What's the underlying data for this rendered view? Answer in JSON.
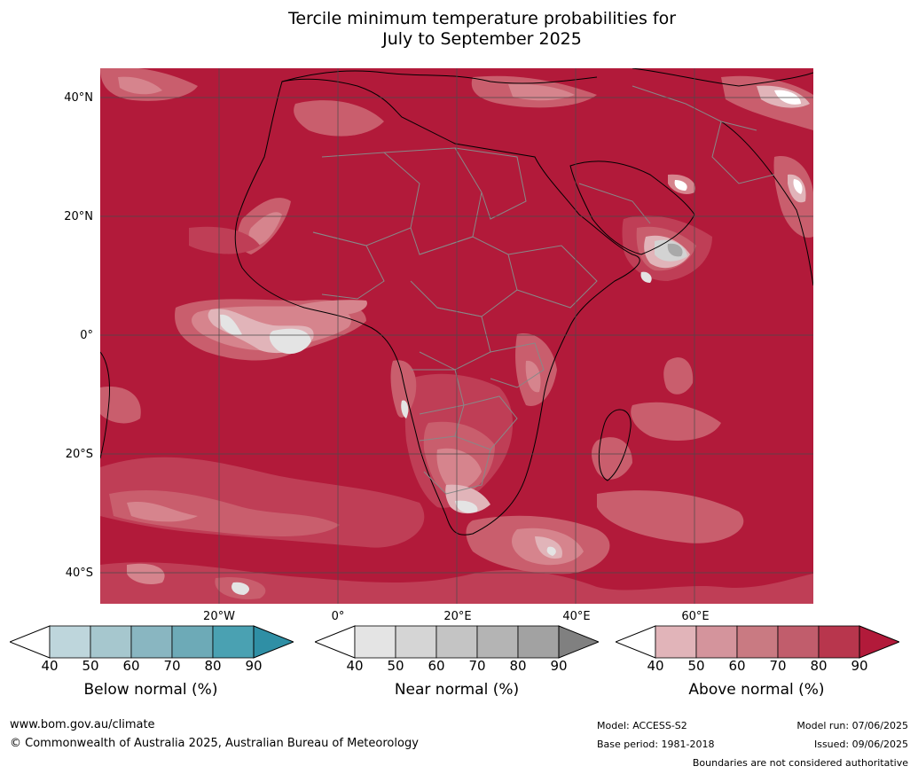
{
  "title": {
    "line1": "Tercile minimum temperature probabilities for",
    "line2": "July to September 2025"
  },
  "map": {
    "latitude_labels": [
      "40°N",
      "20°N",
      "0°",
      "20°S",
      "40°S"
    ],
    "longitude_labels": [
      "20°W",
      "0°",
      "20°E",
      "40°E",
      "60°E"
    ],
    "colors": {
      "above_90": "#b21a3a",
      "above_80": "#bf3e56",
      "above_70": "#c95e6d",
      "above_60": "#d6848d",
      "above_50": "#e1b4b9",
      "near_40": "#ffffff",
      "near_50": "#e4e4e4",
      "near_60": "#d3d3d3",
      "near_70": "#c4c4c4",
      "near_80": "#a9a9a9",
      "coastline": "#000000",
      "borders": "#888888",
      "gridlines": "#4a4a4a"
    }
  },
  "legends": [
    {
      "title": "Below normal (%)",
      "ticks": [
        "40",
        "50",
        "60",
        "70",
        "80",
        "90"
      ],
      "colors": [
        "#ffffff",
        "#bed6dc",
        "#a6c7ce",
        "#89b6c1",
        "#6daab7",
        "#4aa1b2",
        "#2f8fa5"
      ]
    },
    {
      "title": "Near normal (%)",
      "ticks": [
        "40",
        "50",
        "60",
        "70",
        "80",
        "90"
      ],
      "colors": [
        "#ffffff",
        "#e4e4e4",
        "#d5d5d5",
        "#c4c4c4",
        "#b4b4b4",
        "#a2a2a2",
        "#808080"
      ]
    },
    {
      "title": "Above normal (%)",
      "ticks": [
        "40",
        "50",
        "60",
        "70",
        "80",
        "90"
      ],
      "colors": [
        "#ffffff",
        "#e1b4b9",
        "#d4949c",
        "#c97a82",
        "#c15d6c",
        "#b8364d",
        "#b21a3a"
      ]
    }
  ],
  "footer": {
    "website": "www.bom.gov.au/climate",
    "copyright": "© Commonwealth of Australia 2025, Australian Bureau of Meteorology",
    "model": "Model: ACCESS-S2",
    "base_period": "Base period: 1981-2018",
    "model_run": "Model run: 07/06/2025",
    "issued": "Issued: 09/06/2025",
    "disclaimer": "Boundaries are not considered authoritative"
  }
}
